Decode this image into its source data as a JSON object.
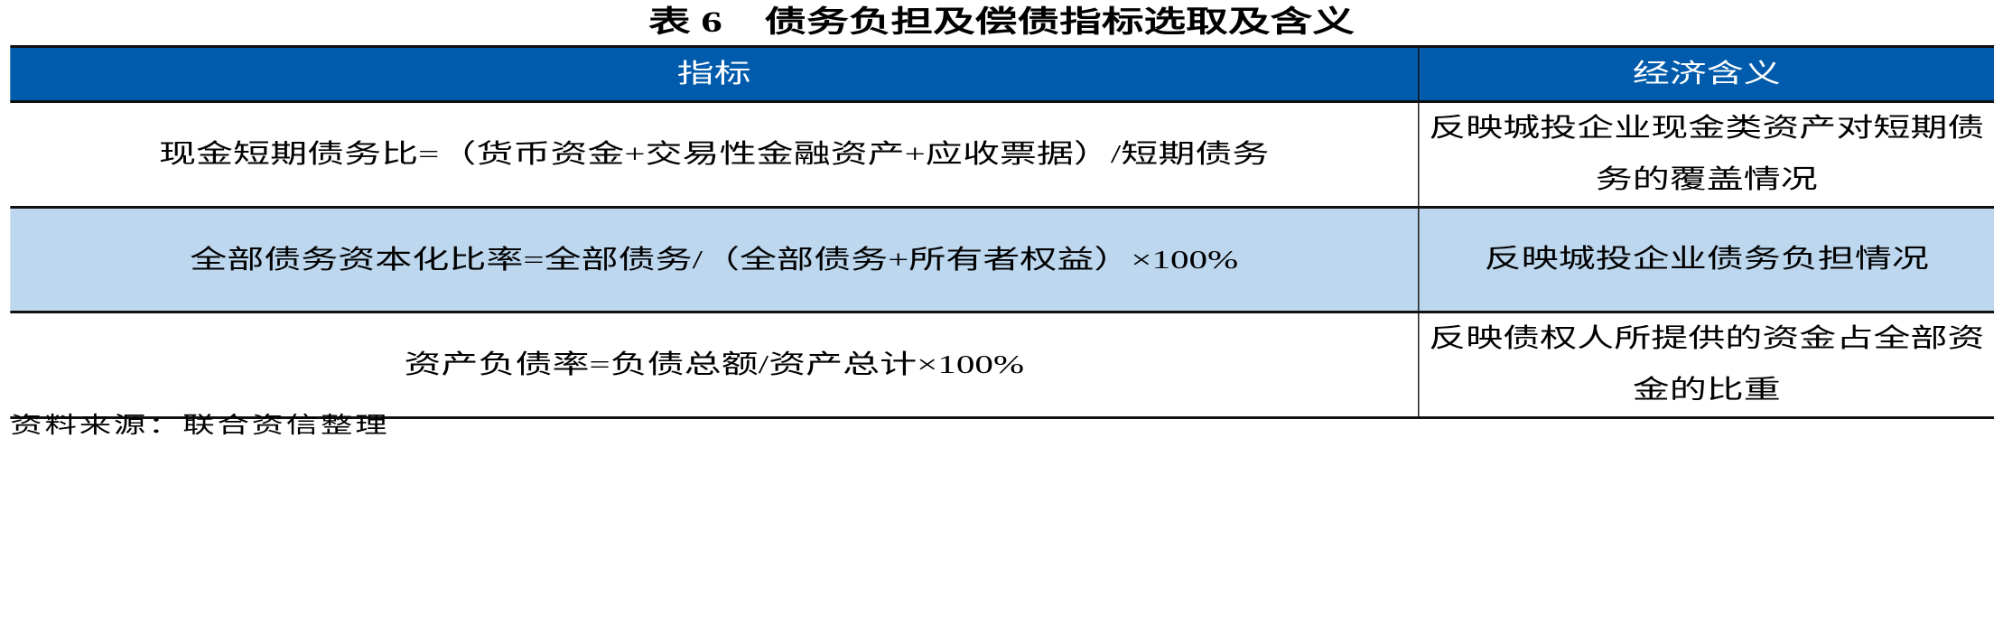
{
  "title": "表 6　债务负担及偿债指标选取及含义",
  "table": {
    "headers": [
      "指标",
      "经济含义"
    ],
    "rows": [
      {
        "indicator": "现金短期债务比=（货币资金+交易性金融资产+应收票据）/短期债务",
        "meaning": "反映城投企业现金类资产对短期债务的覆盖情况"
      },
      {
        "indicator": "全部债务资本化比率=全部债务/（全部债务+所有者权益）×100%",
        "meaning": "反映城投企业债务负担情况"
      },
      {
        "indicator": "资产负债率=负债总额/资产总计×100%",
        "meaning": "反映债权人所提供的资金占全部资金的比重"
      }
    ]
  },
  "source": "资料来源：联合资信整理",
  "colors": {
    "header_bg": "#005BAC",
    "alt_row_bg": "#BDD7EE"
  }
}
